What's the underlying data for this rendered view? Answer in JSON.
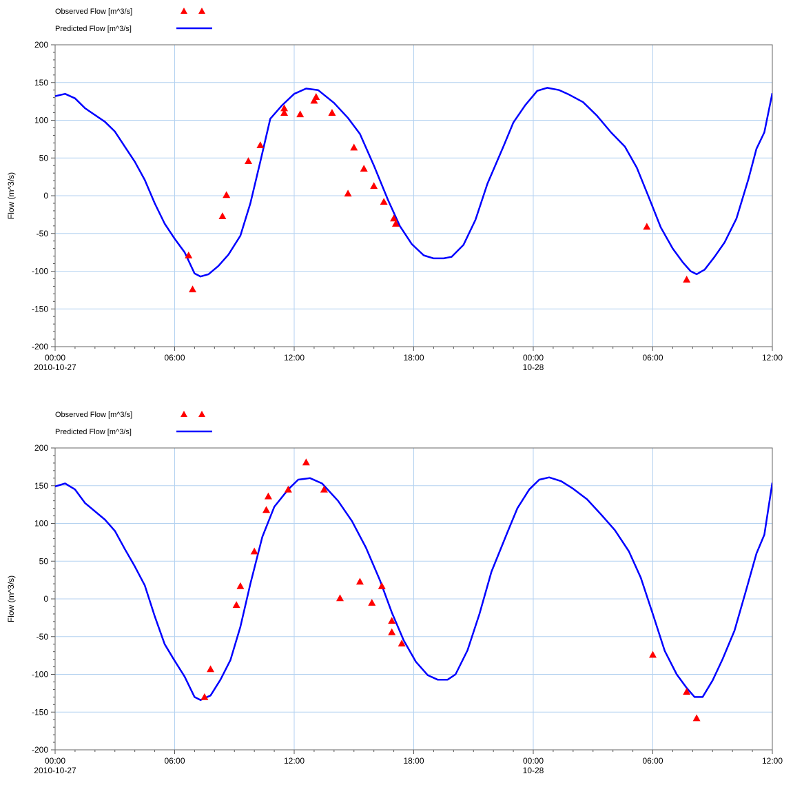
{
  "chart_data": [
    {
      "type": "line",
      "title": "",
      "xlabel": "",
      "ylabel": "Flow (m^3/s)",
      "xlim_hours": [
        0,
        36
      ],
      "ylim": [
        -200,
        200
      ],
      "yticks": [
        -200,
        -150,
        -100,
        -50,
        0,
        50,
        100,
        150,
        200
      ],
      "xticks": [
        {
          "hour": 0,
          "label": "00:00",
          "sublabel": "2010-10-27"
        },
        {
          "hour": 6,
          "label": "06:00",
          "sublabel": ""
        },
        {
          "hour": 12,
          "label": "12:00",
          "sublabel": ""
        },
        {
          "hour": 18,
          "label": "18:00",
          "sublabel": ""
        },
        {
          "hour": 24,
          "label": "00:00",
          "sublabel": "10-28"
        },
        {
          "hour": 30,
          "label": "06:00",
          "sublabel": ""
        },
        {
          "hour": 36,
          "label": "12:00",
          "sublabel": ""
        }
      ],
      "grid": true,
      "legend_position": "top-left",
      "colors": {
        "observed": "#ff0000",
        "predicted": "#0000ff",
        "grid": "#b4d2f0"
      },
      "series": [
        {
          "name": "Observed Flow [m^3/s]",
          "style": "markers",
          "points": [
            [
              6.7,
              -79
            ],
            [
              6.9,
              -124
            ],
            [
              8.4,
              -27
            ],
            [
              8.6,
              1
            ],
            [
              9.7,
              46
            ],
            [
              10.3,
              67
            ],
            [
              11.5,
              116
            ],
            [
              11.5,
              110
            ],
            [
              12.3,
              108
            ],
            [
              13.0,
              126
            ],
            [
              13.1,
              131
            ],
            [
              13.9,
              110
            ],
            [
              14.7,
              3
            ],
            [
              15.0,
              64
            ],
            [
              15.5,
              36
            ],
            [
              16.0,
              13
            ],
            [
              16.5,
              -8
            ],
            [
              17.0,
              -30
            ],
            [
              17.1,
              -37
            ],
            [
              29.7,
              -41
            ],
            [
              31.7,
              -111
            ]
          ]
        },
        {
          "name": "Predicted Flow [m^3/s]",
          "style": "line",
          "points": [
            [
              0,
              132
            ],
            [
              0.5,
              135
            ],
            [
              1.0,
              129
            ],
            [
              1.5,
              116
            ],
            [
              2.5,
              98
            ],
            [
              3.0,
              85
            ],
            [
              3.5,
              65
            ],
            [
              4.0,
              45
            ],
            [
              4.5,
              21
            ],
            [
              5.0,
              -10
            ],
            [
              5.5,
              -37
            ],
            [
              6.0,
              -57
            ],
            [
              6.5,
              -75
            ],
            [
              7.0,
              -103
            ],
            [
              7.3,
              -107
            ],
            [
              7.7,
              -104
            ],
            [
              8.2,
              -93
            ],
            [
              8.7,
              -78
            ],
            [
              9.3,
              -53
            ],
            [
              9.8,
              -10
            ],
            [
              10.3,
              45
            ],
            [
              10.8,
              102
            ],
            [
              11.4,
              120
            ],
            [
              12.0,
              135
            ],
            [
              12.6,
              142
            ],
            [
              13.2,
              140
            ],
            [
              14.0,
              123
            ],
            [
              14.7,
              103
            ],
            [
              15.3,
              82
            ],
            [
              16.0,
              40
            ],
            [
              16.7,
              -5
            ],
            [
              17.3,
              -40
            ],
            [
              17.9,
              -64
            ],
            [
              18.5,
              -79
            ],
            [
              19.0,
              -83
            ],
            [
              19.5,
              -83
            ],
            [
              19.9,
              -81
            ],
            [
              20.5,
              -65
            ],
            [
              21.1,
              -32
            ],
            [
              21.7,
              16
            ],
            [
              22.5,
              65
            ],
            [
              23.0,
              97
            ],
            [
              23.6,
              120
            ],
            [
              24.2,
              139
            ],
            [
              24.7,
              143
            ],
            [
              25.3,
              140
            ],
            [
              25.8,
              134
            ],
            [
              26.5,
              124
            ],
            [
              27.2,
              106
            ],
            [
              27.9,
              84
            ],
            [
              28.6,
              65
            ],
            [
              29.2,
              37
            ],
            [
              29.8,
              -2
            ],
            [
              30.4,
              -42
            ],
            [
              31.0,
              -70
            ],
            [
              31.5,
              -88
            ],
            [
              31.9,
              -100
            ],
            [
              32.2,
              -104
            ],
            [
              32.6,
              -98
            ],
            [
              33.1,
              -81
            ],
            [
              33.6,
              -62
            ],
            [
              34.2,
              -30
            ],
            [
              34.8,
              22
            ],
            [
              35.2,
              62
            ],
            [
              35.6,
              84
            ],
            [
              36.0,
              136
            ]
          ]
        }
      ]
    },
    {
      "type": "line",
      "title": "",
      "xlabel": "",
      "ylabel": "Flow (m^3/s)",
      "xlim_hours": [
        0,
        36
      ],
      "ylim": [
        -200,
        200
      ],
      "yticks": [
        -200,
        -150,
        -100,
        -50,
        0,
        50,
        100,
        150,
        200
      ],
      "xticks": [
        {
          "hour": 0,
          "label": "00:00",
          "sublabel": "2010-10-27"
        },
        {
          "hour": 6,
          "label": "06:00",
          "sublabel": ""
        },
        {
          "hour": 12,
          "label": "12:00",
          "sublabel": ""
        },
        {
          "hour": 18,
          "label": "18:00",
          "sublabel": ""
        },
        {
          "hour": 24,
          "label": "00:00",
          "sublabel": "10-28"
        },
        {
          "hour": 30,
          "label": "06:00",
          "sublabel": ""
        },
        {
          "hour": 36,
          "label": "12:00",
          "sublabel": ""
        }
      ],
      "grid": true,
      "legend_position": "top-left",
      "colors": {
        "observed": "#ff0000",
        "predicted": "#0000ff",
        "grid": "#b4d2f0"
      },
      "series": [
        {
          "name": "Observed Flow  [m^3/s]",
          "style": "markers",
          "points": [
            [
              7.5,
              -130
            ],
            [
              7.8,
              -93
            ],
            [
              9.1,
              -8
            ],
            [
              9.3,
              17
            ],
            [
              10.0,
              63
            ],
            [
              10.6,
              118
            ],
            [
              10.7,
              136
            ],
            [
              11.7,
              145
            ],
            [
              12.6,
              181
            ],
            [
              13.5,
              145
            ],
            [
              14.3,
              1
            ],
            [
              15.3,
              23
            ],
            [
              15.9,
              -5
            ],
            [
              16.4,
              17
            ],
            [
              16.9,
              -29
            ],
            [
              16.9,
              -44
            ],
            [
              17.4,
              -59
            ],
            [
              30.0,
              -74
            ],
            [
              31.7,
              -123
            ],
            [
              32.2,
              -158
            ]
          ]
        },
        {
          "name": "Predicted Flow  [m^3/s]",
          "style": "line",
          "points": [
            [
              0,
              149
            ],
            [
              0.5,
              153
            ],
            [
              1.0,
              145
            ],
            [
              1.5,
              127
            ],
            [
              2.5,
              105
            ],
            [
              3.0,
              90
            ],
            [
              3.5,
              66
            ],
            [
              4.0,
              43
            ],
            [
              4.5,
              18
            ],
            [
              5.0,
              -23
            ],
            [
              5.5,
              -60
            ],
            [
              6.0,
              -82
            ],
            [
              6.5,
              -103
            ],
            [
              7.0,
              -130
            ],
            [
              7.3,
              -134
            ],
            [
              7.8,
              -128
            ],
            [
              8.3,
              -107
            ],
            [
              8.8,
              -81
            ],
            [
              9.3,
              -37
            ],
            [
              9.8,
              20
            ],
            [
              10.4,
              82
            ],
            [
              11.0,
              122
            ],
            [
              11.7,
              145
            ],
            [
              12.2,
              158
            ],
            [
              12.8,
              160
            ],
            [
              13.4,
              153
            ],
            [
              14.2,
              130
            ],
            [
              14.9,
              103
            ],
            [
              15.6,
              68
            ],
            [
              16.3,
              25
            ],
            [
              16.9,
              -18
            ],
            [
              17.5,
              -55
            ],
            [
              18.1,
              -83
            ],
            [
              18.7,
              -101
            ],
            [
              19.2,
              -107
            ],
            [
              19.7,
              -107
            ],
            [
              20.1,
              -100
            ],
            [
              20.7,
              -68
            ],
            [
              21.3,
              -20
            ],
            [
              21.9,
              36
            ],
            [
              22.7,
              88
            ],
            [
              23.2,
              120
            ],
            [
              23.8,
              145
            ],
            [
              24.3,
              158
            ],
            [
              24.8,
              161
            ],
            [
              25.4,
              156
            ],
            [
              26.0,
              146
            ],
            [
              26.7,
              132
            ],
            [
              27.4,
              112
            ],
            [
              28.1,
              91
            ],
            [
              28.8,
              63
            ],
            [
              29.4,
              28
            ],
            [
              30.0,
              -20
            ],
            [
              30.6,
              -69
            ],
            [
              31.2,
              -100
            ],
            [
              31.7,
              -118
            ],
            [
              32.1,
              -130
            ],
            [
              32.5,
              -130
            ],
            [
              33.0,
              -108
            ],
            [
              33.5,
              -80
            ],
            [
              34.1,
              -42
            ],
            [
              34.7,
              13
            ],
            [
              35.2,
              60
            ],
            [
              35.6,
              85
            ],
            [
              36.0,
              154
            ]
          ]
        }
      ]
    }
  ]
}
